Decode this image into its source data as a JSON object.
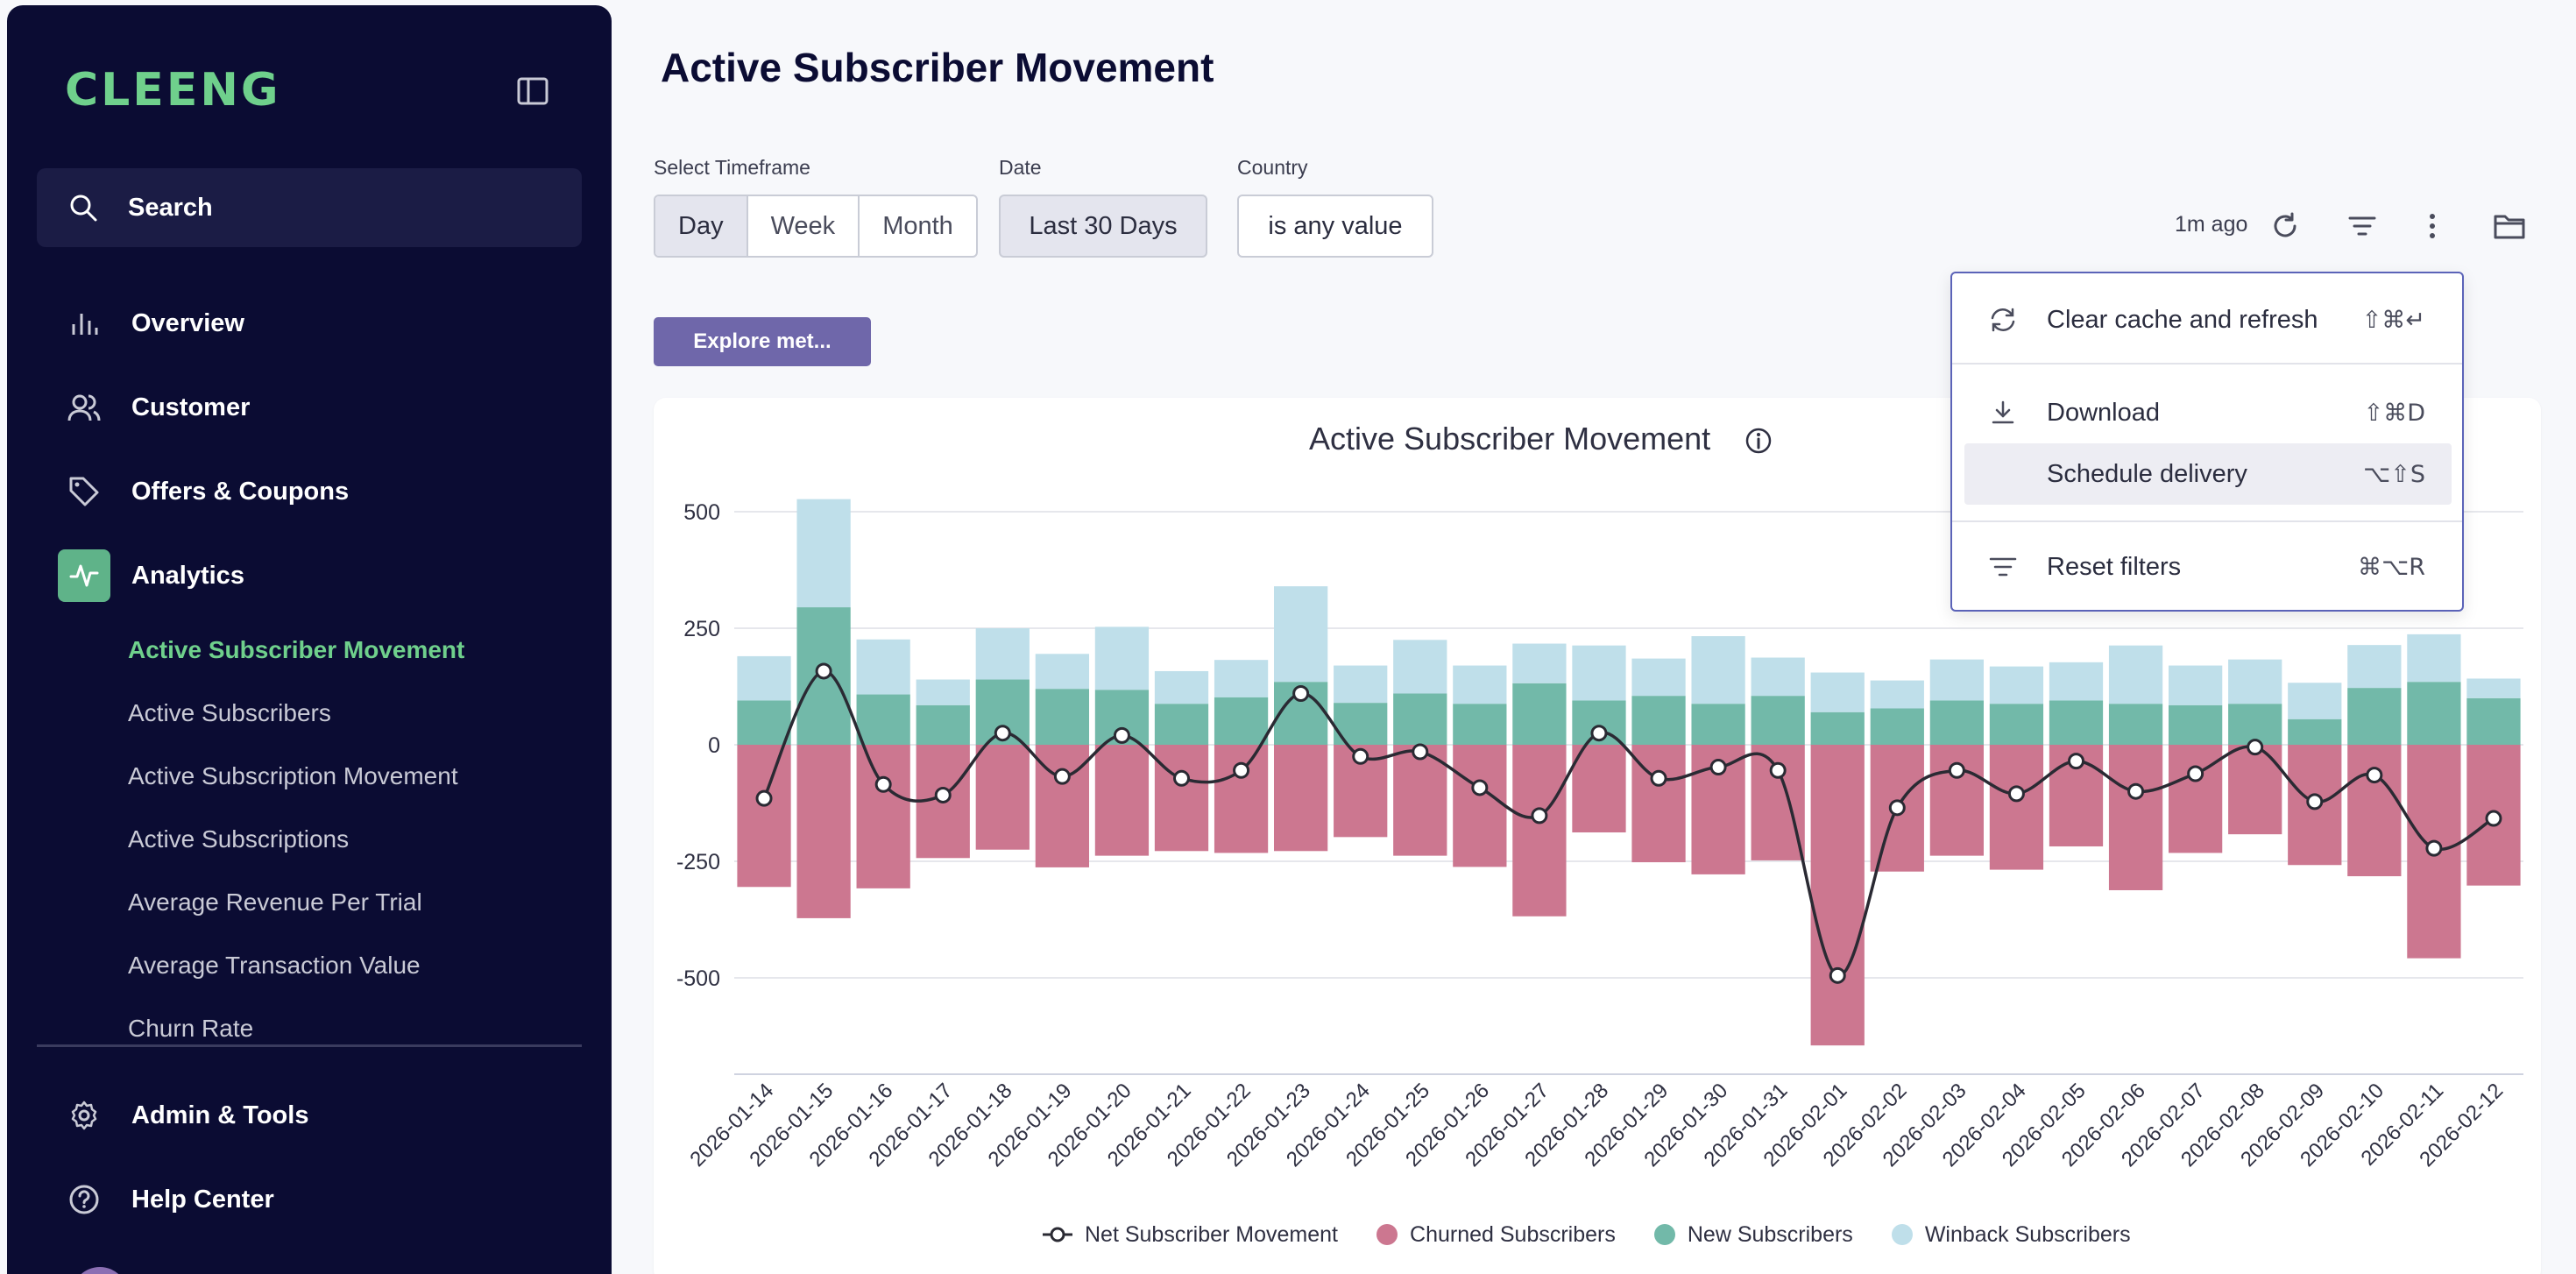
{
  "app": {
    "logo_text": "CLEENG",
    "brand_color": "#6fd08c"
  },
  "sidebar": {
    "search_label": "Search",
    "nav": [
      {
        "label": "Overview",
        "icon": "bar-chart-icon"
      },
      {
        "label": "Customer",
        "icon": "users-icon"
      },
      {
        "label": "Offers & Coupons",
        "icon": "tag-icon"
      },
      {
        "label": "Analytics",
        "icon": "activity-icon",
        "active": true
      }
    ],
    "analytics_items": [
      "Active Subscriber Movement",
      "Active Subscribers",
      "Active Subscription Movement",
      "Active Subscriptions",
      "Average Revenue Per Trial",
      "Average Transaction Value",
      "Churn Rate"
    ],
    "bottom_nav": [
      {
        "label": "Admin & Tools",
        "icon": "gear-icon"
      },
      {
        "label": "Help Center",
        "icon": "help-circle-icon"
      }
    ]
  },
  "page": {
    "title": "Active Subscriber Movement"
  },
  "filters": {
    "timeframe_label": "Select Timeframe",
    "timeframe_options": [
      "Day",
      "Week",
      "Month"
    ],
    "timeframe_selected": "Day",
    "date_label": "Date",
    "date_value": "Last 30 Days",
    "country_label": "Country",
    "country_value": "is any value"
  },
  "toolbar": {
    "updated": "1m ago"
  },
  "explore_button": "Explore met...",
  "menu": {
    "items": [
      {
        "label": "Clear cache and refresh",
        "shortcut": "⇧⌘↵",
        "icon": "refresh-icon"
      },
      {
        "label": "Download",
        "shortcut": "⇧⌘D",
        "icon": "download-icon"
      },
      {
        "label": "Schedule delivery",
        "shortcut": "⌥⇧S",
        "icon": "none"
      },
      {
        "label": "Reset filters",
        "shortcut": "⌘⌥R",
        "icon": "filter-icon"
      }
    ],
    "highlighted": "Schedule delivery"
  },
  "chart_data": {
    "type": "bar",
    "title": "Active Subscriber Movement",
    "stacked": true,
    "ylim": [
      -700,
      540
    ],
    "yticks": [
      500,
      250,
      0,
      -250,
      -500
    ],
    "grid": true,
    "legend_position": "bottom",
    "categories": [
      "2026-01-14",
      "2026-01-15",
      "2026-01-16",
      "2026-01-17",
      "2026-01-18",
      "2026-01-19",
      "2026-01-20",
      "2026-01-21",
      "2026-01-22",
      "2026-01-23",
      "2026-01-24",
      "2026-01-25",
      "2026-01-26",
      "2026-01-27",
      "2026-01-28",
      "2026-01-29",
      "2026-01-30",
      "2026-01-31",
      "2026-02-01",
      "2026-02-02",
      "2026-02-03",
      "2026-02-04",
      "2026-02-05",
      "2026-02-06",
      "2026-02-07",
      "2026-02-08",
      "2026-02-09",
      "2026-02-10",
      "2026-02-11",
      "2026-02-12"
    ],
    "series": [
      {
        "name": "Churned Subscribers",
        "color": "#cc7790",
        "kind": "bar",
        "values": [
          -305,
          -372,
          -308,
          -243,
          -225,
          -263,
          -238,
          -228,
          -232,
          -228,
          -198,
          -238,
          -262,
          -368,
          -188,
          -252,
          -278,
          -248,
          -645,
          -272,
          -238,
          -268,
          -218,
          -312,
          -232,
          -192,
          -258,
          -282,
          -458,
          -302
        ]
      },
      {
        "name": "New Subscribers",
        "color": "#72b9a9",
        "kind": "bar",
        "values": [
          95,
          295,
          108,
          85,
          140,
          120,
          118,
          88,
          102,
          135,
          90,
          110,
          88,
          132,
          95,
          105,
          88,
          105,
          70,
          78,
          95,
          88,
          95,
          88,
          85,
          88,
          55,
          122,
          135,
          100
        ]
      },
      {
        "name": "Winback Subscribers",
        "color": "#bfdfea",
        "kind": "bar",
        "values": [
          95,
          232,
          118,
          55,
          110,
          75,
          135,
          70,
          80,
          205,
          80,
          115,
          82,
          85,
          118,
          80,
          145,
          82,
          85,
          60,
          88,
          80,
          82,
          125,
          85,
          95,
          78,
          92,
          102,
          42
        ]
      },
      {
        "name": "Net Subscriber Movement",
        "color": "#2a2a33",
        "kind": "line",
        "values": [
          -115,
          158,
          -85,
          -108,
          25,
          -68,
          20,
          -72,
          -55,
          110,
          -25,
          -15,
          -92,
          -152,
          25,
          -72,
          -48,
          -55,
          -495,
          -135,
          -55,
          -105,
          -35,
          -100,
          -62,
          -5,
          -122,
          -65,
          -222,
          -158
        ]
      }
    ]
  }
}
